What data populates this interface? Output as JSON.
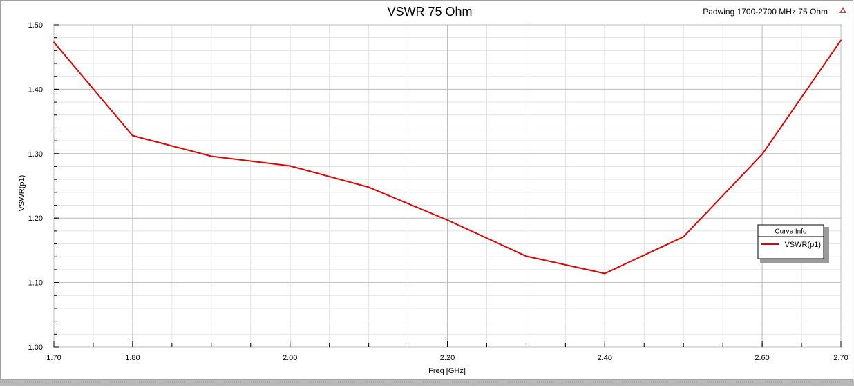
{
  "window": {
    "title": "VSWR 75 Ohm",
    "project_label": "Padwing 1700-2700 MHz 75 Ohm",
    "logo_icon": "ansys-logo-icon"
  },
  "legend": {
    "title": "Curve Info",
    "entries": [
      "VSWR(p1)"
    ],
    "placement": "right-middle"
  },
  "chart_data": {
    "type": "line",
    "title": "VSWR 75 Ohm",
    "xlabel": "Freq [GHz]",
    "ylabel": "VSWR(p1)",
    "xlim": [
      1.7,
      2.7
    ],
    "ylim": [
      1.0,
      1.5
    ],
    "x_ticks": [
      "1.70",
      "1.80",
      "2.00",
      "2.20",
      "2.40",
      "2.60",
      "2.70"
    ],
    "x_tick_values": [
      1.7,
      1.8,
      2.0,
      2.2,
      2.4,
      2.6,
      2.7
    ],
    "y_ticks": [
      "1.00",
      "1.10",
      "1.20",
      "1.30",
      "1.40",
      "1.50"
    ],
    "y_tick_values": [
      1.0,
      1.1,
      1.2,
      1.3,
      1.4,
      1.5
    ],
    "grid": true,
    "series": [
      {
        "name": "VSWR(p1)",
        "color": "#e00000",
        "x": [
          1.7,
          1.8,
          1.9,
          2.0,
          2.1,
          2.2,
          2.3,
          2.4,
          2.5,
          2.6,
          2.7
        ],
        "y": [
          1.473,
          1.328,
          1.296,
          1.281,
          1.248,
          1.197,
          1.141,
          1.114,
          1.171,
          1.299,
          1.476
        ]
      }
    ]
  }
}
